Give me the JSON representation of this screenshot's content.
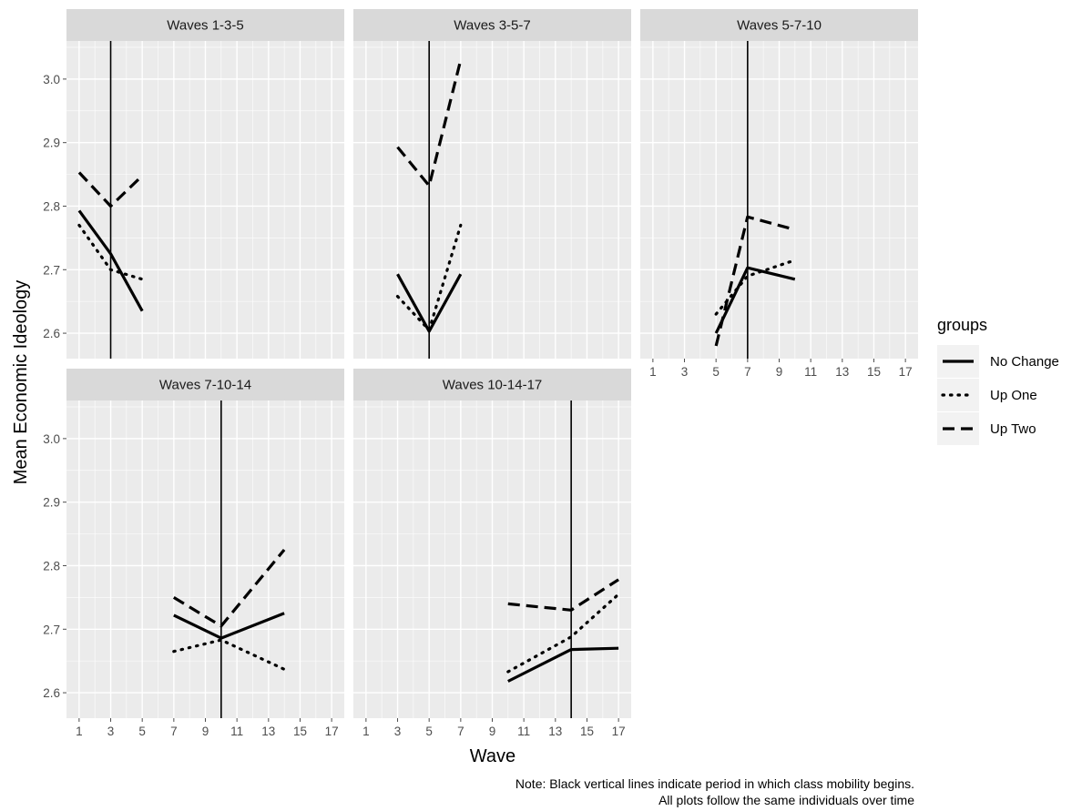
{
  "chart_data": {
    "type": "line",
    "ylabel": "Mean Economic Ideology",
    "xlabel": "Wave",
    "ylim": [
      2.56,
      3.06
    ],
    "xlim": [
      0.2,
      17.8
    ],
    "x_ticks": [
      1,
      3,
      5,
      7,
      9,
      11,
      13,
      15,
      17
    ],
    "y_ticks": [
      2.6,
      2.7,
      2.8,
      2.9,
      3.0
    ],
    "y_tick_labels": [
      "2.6",
      "2.7",
      "2.8",
      "2.9",
      "3.0"
    ],
    "grid": true,
    "legend": {
      "title": "groups",
      "position": "right",
      "entries": [
        "No Change",
        "Up One",
        "Up Two"
      ]
    },
    "note_lines": [
      "Note: Black vertical lines indicate period in which class mobility begins.",
      "All plots follow the same individuals over time"
    ],
    "panels": [
      {
        "title": "Waves 1-3-5",
        "vline": 3,
        "series": [
          {
            "name": "No Change",
            "x": [
              1,
              3,
              5
            ],
            "y": [
              2.793,
              2.725,
              2.635
            ]
          },
          {
            "name": "Up One",
            "x": [
              1,
              3,
              5
            ],
            "y": [
              2.77,
              2.7,
              2.685
            ]
          },
          {
            "name": "Up Two",
            "x": [
              1,
              3,
              5
            ],
            "y": [
              2.853,
              2.8,
              2.848
            ]
          }
        ]
      },
      {
        "title": "Waves 3-5-7",
        "vline": 5,
        "series": [
          {
            "name": "No Change",
            "x": [
              3,
              5,
              7
            ],
            "y": [
              2.693,
              2.603,
              2.693
            ]
          },
          {
            "name": "Up One",
            "x": [
              3,
              5,
              7
            ],
            "y": [
              2.658,
              2.605,
              2.77
            ]
          },
          {
            "name": "Up Two",
            "x": [
              3,
              5,
              7
            ],
            "y": [
              2.893,
              2.832,
              3.03
            ]
          }
        ]
      },
      {
        "title": "Waves 5-7-10",
        "vline": 7,
        "series": [
          {
            "name": "No Change",
            "x": [
              5,
              7,
              10
            ],
            "y": [
              2.6,
              2.703,
              2.685
            ]
          },
          {
            "name": "Up One",
            "x": [
              5,
              7,
              10
            ],
            "y": [
              2.63,
              2.69,
              2.715
            ]
          },
          {
            "name": "Up Two",
            "x": [
              5,
              7,
              10
            ],
            "y": [
              2.58,
              2.783,
              2.763
            ]
          }
        ]
      },
      {
        "title": "Waves 7-10-14",
        "vline": 10,
        "series": [
          {
            "name": "No Change",
            "x": [
              7,
              10,
              14
            ],
            "y": [
              2.722,
              2.686,
              2.725
            ]
          },
          {
            "name": "Up One",
            "x": [
              7,
              10,
              14
            ],
            "y": [
              2.665,
              2.683,
              2.637
            ]
          },
          {
            "name": "Up Two",
            "x": [
              7,
              10,
              14
            ],
            "y": [
              2.75,
              2.705,
              2.825
            ]
          }
        ]
      },
      {
        "title": "Waves 10-14-17",
        "vline": 14,
        "series": [
          {
            "name": "No Change",
            "x": [
              10,
              14,
              17
            ],
            "y": [
              2.618,
              2.668,
              2.67
            ]
          },
          {
            "name": "Up One",
            "x": [
              10,
              14,
              17
            ],
            "y": [
              2.633,
              2.688,
              2.755
            ]
          },
          {
            "name": "Up Two",
            "x": [
              10,
              14,
              17
            ],
            "y": [
              2.74,
              2.73,
              2.778
            ]
          }
        ]
      }
    ]
  },
  "styles": {
    "panel_bg": "#ebebeb",
    "strip_bg": "#d9d9d9",
    "grid_major": "#ffffff",
    "line_color": "#000000",
    "tick_color": "#4d4d4d"
  }
}
